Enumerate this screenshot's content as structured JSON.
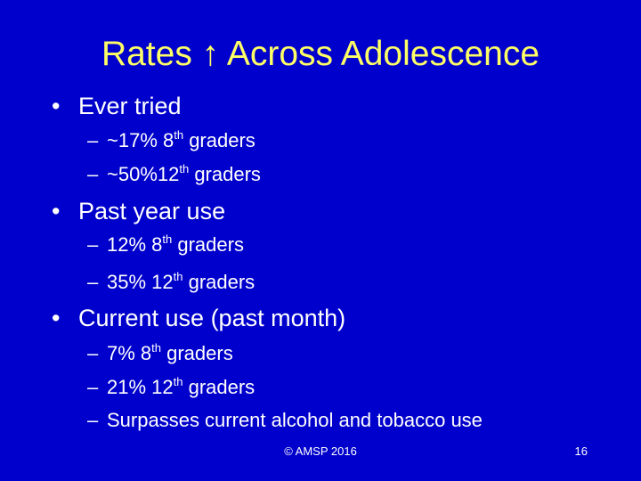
{
  "title": "Rates ↑ Across Adolescence",
  "bullets": [
    {
      "text": "Ever tried",
      "items": [
        {
          "before": "~17% 8",
          "sup": "th",
          "after": " graders"
        },
        {
          "before": "~50%12",
          "sup": "th",
          "after": " graders"
        }
      ]
    },
    {
      "text": "Past year use",
      "items": [
        {
          "before": "12% 8",
          "sup": "th",
          "after": " graders"
        },
        {
          "before": "35% 12",
          "sup": "th",
          "after": " graders"
        }
      ]
    },
    {
      "text": "Current use (past month)",
      "items": [
        {
          "before": "7% 8",
          "sup": "th",
          "after": " graders"
        },
        {
          "before": "21% 12",
          "sup": "th",
          "after": " graders"
        },
        {
          "text": "Surpasses current alcohol and tobacco use"
        }
      ]
    }
  ],
  "footer": {
    "copyright": "© AMSP 2016",
    "page": 16
  }
}
